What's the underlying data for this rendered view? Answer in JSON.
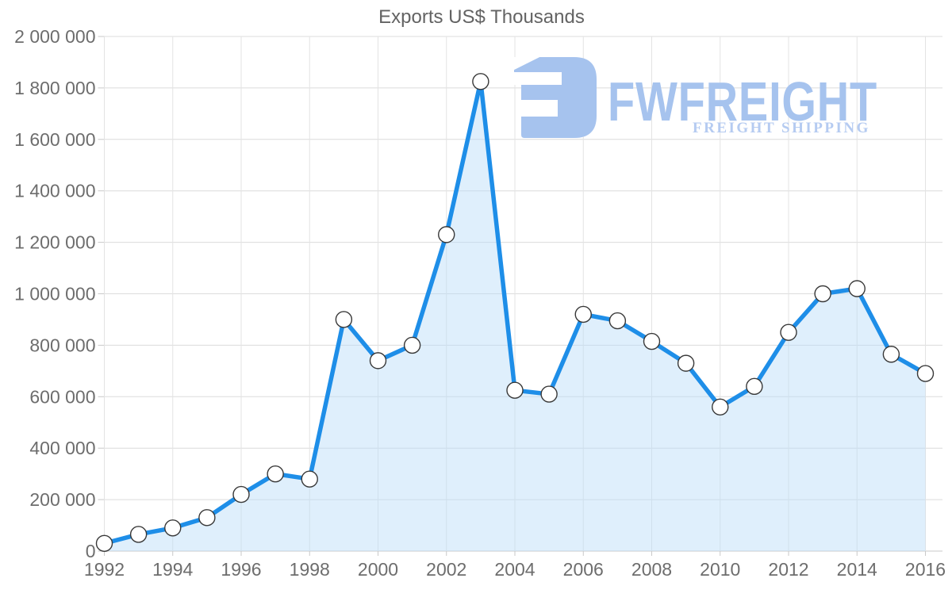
{
  "title": "Exports US$ Thousands",
  "watermark": {
    "brand": "FWFREIGHT",
    "tagline": "FREIGHT SHIPPING",
    "color": "#a6c3ee",
    "tagline_color": "#b5cbf1"
  },
  "chart_data": {
    "type": "area",
    "title": "Exports US$ Thousands",
    "xlabel": "",
    "ylabel": "",
    "x": [
      1992,
      1993,
      1994,
      1995,
      1996,
      1997,
      1998,
      1999,
      2000,
      2001,
      2002,
      2003,
      2004,
      2005,
      2006,
      2007,
      2008,
      2009,
      2010,
      2011,
      2012,
      2013,
      2014,
      2015,
      2016
    ],
    "values": [
      30000,
      65000,
      90000,
      130000,
      220000,
      300000,
      280000,
      900000,
      740000,
      800000,
      1230000,
      1825000,
      625000,
      610000,
      920000,
      895000,
      815000,
      730000,
      560000,
      640000,
      850000,
      1000000,
      1020000,
      765000,
      690000
    ],
    "series_name": "Exports US$ Thousands",
    "ylim": [
      0,
      2000000
    ],
    "xlim": [
      1992,
      2016
    ],
    "grid": true,
    "legend": false,
    "marker": "circle",
    "y_ticks": [
      {
        "v": 0,
        "label": "0"
      },
      {
        "v": 200000,
        "label": "200 000"
      },
      {
        "v": 400000,
        "label": "400 000"
      },
      {
        "v": 600000,
        "label": "600 000"
      },
      {
        "v": 800000,
        "label": "800 000"
      },
      {
        "v": 1000000,
        "label": "1 000 000"
      },
      {
        "v": 1200000,
        "label": "1 200 000"
      },
      {
        "v": 1400000,
        "label": "1 400 000"
      },
      {
        "v": 1600000,
        "label": "1 600 000"
      },
      {
        "v": 1800000,
        "label": "1 800 000"
      },
      {
        "v": 2000000,
        "label": "2 000 000"
      }
    ],
    "x_ticks": [
      {
        "year": 1992,
        "label": "1992"
      },
      {
        "year": 1994,
        "label": "1994"
      },
      {
        "year": 1996,
        "label": "1996"
      },
      {
        "year": 1998,
        "label": "1998"
      },
      {
        "year": 2000,
        "label": "2000"
      },
      {
        "year": 2002,
        "label": "2002"
      },
      {
        "year": 2004,
        "label": "2004"
      },
      {
        "year": 2006,
        "label": "2006"
      },
      {
        "year": 2008,
        "label": "2008"
      },
      {
        "year": 2010,
        "label": "2010"
      },
      {
        "year": 2012,
        "label": "2012"
      },
      {
        "year": 2014,
        "label": "2014"
      },
      {
        "year": 2016,
        "label": "2016"
      }
    ],
    "colors": {
      "line": "#1e8ee8",
      "fill": "rgba(184,219,248,0.45)",
      "marker_fill": "#ffffff",
      "marker_stroke": "#383838",
      "grid_h": "#dcdcdc",
      "grid_v": "#e3e3e3",
      "axis": "#c9c9c9",
      "label": "#6d6d6d",
      "title": "#636363"
    }
  }
}
